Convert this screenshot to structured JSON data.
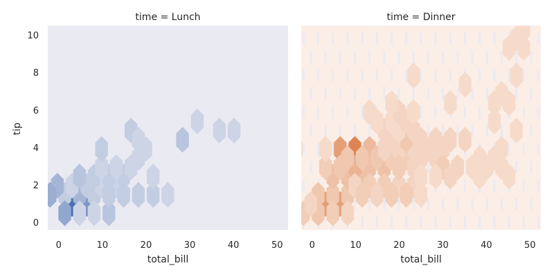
{
  "chart_data": {
    "type": "hexbin",
    "x_label": "total_bill",
    "y_label": "tip",
    "x_ticks": [
      "0",
      "10",
      "20",
      "30",
      "40",
      "50"
    ],
    "y_ticks": [
      "0",
      "2",
      "4",
      "6",
      "8",
      "10"
    ],
    "x_range": [
      -2.5,
      52.5
    ],
    "y_range": [
      -0.4,
      10.5
    ],
    "hex_grid": {
      "dx": 3.37,
      "dy": 0.98,
      "x0": 3.07,
      "y0": 0
    },
    "max_count": 14,
    "grid": false,
    "panels": [
      {
        "title": "time = Lunch",
        "color": "#4c72b0",
        "background": "#eaeaf2",
        "bins": [
          {
            "c": 0,
            "r": 1,
            "n": 14
          },
          {
            "c": 1,
            "r": 1,
            "n": 9
          },
          {
            "c": -0.5,
            "r": 1.5,
            "n": 2
          },
          {
            "c": -1,
            "r": 2,
            "n": 5
          },
          {
            "c": -1.5,
            "r": 1.5,
            "n": 6
          },
          {
            "c": 0.5,
            "r": 1.5,
            "n": 5
          },
          {
            "c": 1.5,
            "r": 1.5,
            "n": 2
          },
          {
            "c": -0.5,
            "r": 0.5,
            "n": 7
          },
          {
            "c": -2.5,
            "r": 0.5,
            "n": 2
          },
          {
            "c": 0.5,
            "r": 0.5,
            "n": 1
          },
          {
            "c": 1.5,
            "r": 0.5,
            "n": 1
          },
          {
            "c": 2.5,
            "r": 0.5,
            "n": 3
          },
          {
            "c": 1,
            "r": 2,
            "n": 2
          },
          {
            "c": 2,
            "r": 2,
            "n": 1
          },
          {
            "c": 3,
            "r": 2,
            "n": 1
          },
          {
            "c": 2.5,
            "r": 1.5,
            "n": 2
          },
          {
            "c": 3.5,
            "r": 1.5,
            "n": 2
          },
          {
            "c": 4.5,
            "r": 1.5,
            "n": 2
          },
          {
            "c": 5.5,
            "r": 1.5,
            "n": 2
          },
          {
            "c": 0,
            "r": 2,
            "n": 1
          },
          {
            "c": 1.5,
            "r": 2.5,
            "n": 2
          },
          {
            "c": 0.5,
            "r": 2.5,
            "n": 3
          },
          {
            "c": 2.5,
            "r": 2.5,
            "n": 2
          },
          {
            "c": 3.5,
            "r": 2.5,
            "n": 2
          },
          {
            "c": 2,
            "r": 3,
            "n": 1
          },
          {
            "c": 3,
            "r": 3,
            "n": 2
          },
          {
            "c": 2,
            "r": 4,
            "n": 2
          },
          {
            "c": 3,
            "r": 3,
            "n": 1
          },
          {
            "c": 4,
            "r": 3,
            "n": 1
          },
          {
            "c": 5.5,
            "r": 2.5,
            "n": 1
          },
          {
            "c": 4,
            "r": 5,
            "n": 2
          },
          {
            "c": 5,
            "r": 4,
            "n": 1
          },
          {
            "c": 4.5,
            "r": 4.5,
            "n": 1
          },
          {
            "c": 4.5,
            "r": 3.5,
            "n": 1
          },
          {
            "c": 6.5,
            "r": 1.5,
            "n": 1
          },
          {
            "c": 7.5,
            "r": 4.5,
            "n": 3
          },
          {
            "c": 8.5,
            "r": 5.5,
            "n": 1
          },
          {
            "c": 10,
            "r": 5,
            "n": 1
          },
          {
            "c": 11,
            "r": 5,
            "n": 1
          }
        ]
      },
      {
        "title": "time = Dinner",
        "color": "#dd8452",
        "background": "#fbeee6",
        "bins": [
          {
            "c": 2,
            "r": 4,
            "n": 14
          },
          {
            "c": 1,
            "r": 4,
            "n": 10
          },
          {
            "c": 0,
            "r": 1,
            "n": 10
          },
          {
            "c": 1,
            "r": 1,
            "n": 10
          },
          {
            "c": 0.5,
            "r": 1.5,
            "n": 4
          },
          {
            "c": 1.5,
            "r": 1.5,
            "n": 4
          },
          {
            "c": -0.5,
            "r": 1.5,
            "n": 4
          },
          {
            "c": 1.5,
            "r": 2.5,
            "n": 5
          },
          {
            "c": 2.5,
            "r": 2.5,
            "n": 5
          },
          {
            "c": 0.5,
            "r": 2.5,
            "n": 5
          },
          {
            "c": 3,
            "r": 4,
            "n": 6
          },
          {
            "c": 2,
            "r": 3,
            "n": 7
          },
          {
            "c": 3,
            "r": 3,
            "n": 5
          },
          {
            "c": 4,
            "r": 3,
            "n": 5
          },
          {
            "c": 1,
            "r": 3,
            "n": 4
          },
          {
            "c": 0,
            "r": 3,
            "n": 3
          },
          {
            "c": 1.5,
            "r": 3.5,
            "n": 4
          },
          {
            "c": 2.5,
            "r": 3.5,
            "n": 4
          },
          {
            "c": 3.5,
            "r": 3.5,
            "n": 4
          },
          {
            "c": 4.5,
            "r": 3.5,
            "n": 3
          },
          {
            "c": 5.5,
            "r": 3.5,
            "n": 3
          },
          {
            "c": -0.5,
            "r": 0.5,
            "n": 4
          },
          {
            "c": -1.5,
            "r": 0.5,
            "n": 3
          },
          {
            "c": -2.5,
            "r": 0.5,
            "n": 2
          },
          {
            "c": 0.5,
            "r": 0.5,
            "n": 3
          },
          {
            "c": 1.5,
            "r": 0.5,
            "n": 2
          },
          {
            "c": -1,
            "r": 1,
            "n": 2
          },
          {
            "c": 2,
            "r": 2,
            "n": 2
          },
          {
            "c": 3,
            "r": 2,
            "n": 3
          },
          {
            "c": 4,
            "r": 2,
            "n": 3
          },
          {
            "c": 5,
            "r": 2,
            "n": 2
          },
          {
            "c": 6,
            "r": 2,
            "n": 2
          },
          {
            "c": 2.5,
            "r": 1.5,
            "n": 3
          },
          {
            "c": 3.5,
            "r": 1.5,
            "n": 2
          },
          {
            "c": 4.5,
            "r": 1.5,
            "n": 3
          },
          {
            "c": 5.5,
            "r": 1.5,
            "n": 3
          },
          {
            "c": 6.5,
            "r": 1.5,
            "n": 1
          },
          {
            "c": 5,
            "r": 4,
            "n": 2
          },
          {
            "c": 4,
            "r": 4,
            "n": 2
          },
          {
            "c": 6,
            "r": 4,
            "n": 2
          },
          {
            "c": 6.5,
            "r": 3.5,
            "n": 2
          },
          {
            "c": 5.5,
            "r": 4.5,
            "n": 4
          },
          {
            "c": 4.5,
            "r": 4.5,
            "n": 2
          },
          {
            "c": 6.5,
            "r": 4.5,
            "n": 2
          },
          {
            "c": 7.5,
            "r": 4.5,
            "n": 2
          },
          {
            "c": 8.5,
            "r": 4.5,
            "n": 2
          },
          {
            "c": 9.5,
            "r": 4.5,
            "n": 2
          },
          {
            "c": 7,
            "r": 4,
            "n": 2
          },
          {
            "c": 8,
            "r": 4,
            "n": 2
          },
          {
            "c": 7.5,
            "r": 3.5,
            "n": 2
          },
          {
            "c": 4,
            "r": 5,
            "n": 2
          },
          {
            "c": 5,
            "r": 5,
            "n": 1
          },
          {
            "c": 6,
            "r": 5,
            "n": 2
          },
          {
            "c": 4.5,
            "r": 5.5,
            "n": 1
          },
          {
            "c": 5.5,
            "r": 5.5,
            "n": 2
          },
          {
            "c": 5,
            "r": 6,
            "n": 2
          },
          {
            "c": 3.5,
            "r": 5.5,
            "n": 1
          },
          {
            "c": 3,
            "r": 6,
            "n": 1
          },
          {
            "c": 5,
            "r": 3,
            "n": 3
          },
          {
            "c": 6,
            "r": 3,
            "n": 2
          },
          {
            "c": 8,
            "r": 3,
            "n": 3
          },
          {
            "c": 9,
            "r": 3,
            "n": 2
          },
          {
            "c": 8.5,
            "r": 2.5,
            "n": 2
          },
          {
            "c": 7.5,
            "r": 2.5,
            "n": 1
          },
          {
            "c": 6.5,
            "r": 2.5,
            "n": 1
          },
          {
            "c": -2,
            "r": 4,
            "n": 1
          },
          {
            "c": 0,
            "r": 4,
            "n": 1
          },
          {
            "c": 6,
            "r": 6,
            "n": 1
          },
          {
            "c": 11.5,
            "r": 3.5,
            "n": 1
          },
          {
            "c": 11,
            "r": 3,
            "n": 1
          },
          {
            "c": 10.5,
            "r": 3.5,
            "n": 1
          },
          {
            "c": 10.5,
            "r": 2.5,
            "n": 1
          },
          {
            "c": 10,
            "r": 3,
            "n": 1
          },
          {
            "c": 12,
            "r": 3,
            "n": 1
          },
          {
            "c": 12.5,
            "r": 2.5,
            "n": 1
          },
          {
            "c": 12,
            "r": 4,
            "n": 1
          },
          {
            "c": 8.5,
            "r": 6.5,
            "n": 1
          },
          {
            "c": 11.5,
            "r": 6.5,
            "n": 1
          },
          {
            "c": 12.5,
            "r": 6.5,
            "n": 1
          },
          {
            "c": 11.5,
            "r": 5.5,
            "n": 1
          },
          {
            "c": 4.5,
            "r": 6.5,
            "n": 1
          },
          {
            "c": 13,
            "r": 5,
            "n": 1
          },
          {
            "c": 13,
            "r": 10,
            "n": 1
          },
          {
            "c": 12.5,
            "r": 9.5,
            "n": 1
          },
          {
            "c": 13.5,
            "r": 9.5,
            "n": 1
          },
          {
            "c": 13.5,
            "r": 10.5,
            "n": 1
          },
          {
            "c": 13,
            "r": 8,
            "n": 1
          },
          {
            "c": 9.5,
            "r": 7.5,
            "n": 1
          },
          {
            "c": 6,
            "r": 8,
            "n": 1
          },
          {
            "c": 12,
            "r": 7,
            "n": 1
          }
        ]
      }
    ]
  }
}
